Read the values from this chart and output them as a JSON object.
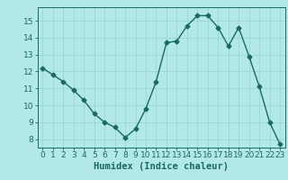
{
  "x": [
    0,
    1,
    2,
    3,
    4,
    5,
    6,
    7,
    8,
    9,
    10,
    11,
    12,
    13,
    14,
    15,
    16,
    17,
    18,
    19,
    20,
    21,
    22,
    23
  ],
  "y": [
    12.2,
    11.8,
    11.4,
    10.9,
    10.3,
    9.5,
    9.0,
    8.7,
    8.1,
    8.6,
    9.8,
    11.4,
    13.7,
    13.8,
    14.7,
    15.3,
    15.3,
    14.6,
    13.5,
    14.6,
    12.9,
    11.1,
    9.0,
    7.7
  ],
  "line_color": "#1a6b5a",
  "marker": "D",
  "marker_size": 2.5,
  "background_color": "#b2e8e8",
  "grid_color": "#9ed8d8",
  "xlabel": "Humidex (Indice chaleur)",
  "ylabel": "",
  "xlim": [
    -0.5,
    23.5
  ],
  "ylim": [
    7.5,
    15.8
  ],
  "yticks": [
    8,
    9,
    10,
    11,
    12,
    13,
    14,
    15
  ],
  "xticks": [
    0,
    1,
    2,
    3,
    4,
    5,
    6,
    7,
    8,
    9,
    10,
    11,
    12,
    13,
    14,
    15,
    16,
    17,
    18,
    19,
    20,
    21,
    22,
    23
  ],
  "tick_label_fontsize": 6.5,
  "xlabel_fontsize": 7.5,
  "spine_color": "#1a6b5a",
  "tick_color": "#1a6b5a",
  "label_color": "#1a6b5a",
  "linewidth": 1.0
}
